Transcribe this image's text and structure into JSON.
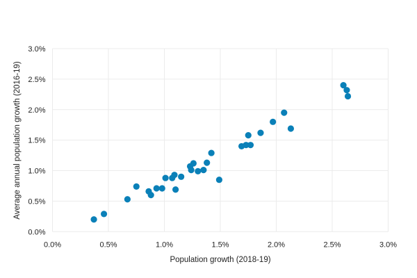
{
  "chart_data": {
    "type": "scatter",
    "title": "",
    "xlabel": "Population growth (2018-19)",
    "ylabel": "Average annual population growth (2016-19)",
    "xlim": [
      0,
      3.0
    ],
    "ylim": [
      0,
      3.0
    ],
    "x_ticks": [
      0,
      0.5,
      1.0,
      1.5,
      2.0,
      2.5,
      3.0
    ],
    "y_ticks": [
      0,
      0.5,
      1.0,
      1.5,
      2.0,
      2.5,
      3.0
    ],
    "x_tick_labels": [
      "0.0%",
      "0.5%",
      "1.0%",
      "1.5%",
      "2.0%",
      "2.5%",
      "3.0%"
    ],
    "y_tick_labels": [
      "0.0%",
      "0.5%",
      "1.0%",
      "1.5%",
      "2.0%",
      "2.5%",
      "3.0%"
    ],
    "grid": true,
    "legend": "none",
    "marker_color": "#0a80b8",
    "grid_color": "#ebebeb",
    "points": [
      [
        0.37,
        0.2
      ],
      [
        0.46,
        0.29
      ],
      [
        0.67,
        0.53
      ],
      [
        0.75,
        0.74
      ],
      [
        0.86,
        0.66
      ],
      [
        0.88,
        0.6
      ],
      [
        0.93,
        0.71
      ],
      [
        0.98,
        0.71
      ],
      [
        1.01,
        0.88
      ],
      [
        1.07,
        0.88
      ],
      [
        1.09,
        0.93
      ],
      [
        1.1,
        0.69
      ],
      [
        1.15,
        0.9
      ],
      [
        1.23,
        1.07
      ],
      [
        1.24,
        1.01
      ],
      [
        1.26,
        1.12
      ],
      [
        1.3,
        0.99
      ],
      [
        1.35,
        1.01
      ],
      [
        1.38,
        1.13
      ],
      [
        1.42,
        1.29
      ],
      [
        1.49,
        0.85
      ],
      [
        1.69,
        1.4
      ],
      [
        1.73,
        1.42
      ],
      [
        1.77,
        1.42
      ],
      [
        1.75,
        1.58
      ],
      [
        1.86,
        1.62
      ],
      [
        1.97,
        1.8
      ],
      [
        2.07,
        1.95
      ],
      [
        2.13,
        1.69
      ],
      [
        2.6,
        2.4
      ],
      [
        2.63,
        2.32
      ],
      [
        2.64,
        2.22
      ]
    ]
  }
}
